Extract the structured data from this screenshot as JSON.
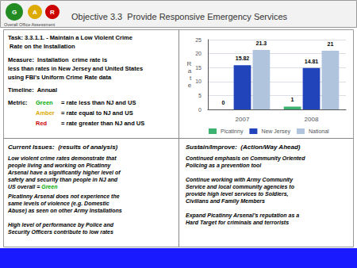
{
  "chart_data": {
    "type": "bar",
    "title": "Objective 3.3  Provide Responsive Emergency Services",
    "categories": [
      "2007",
      "2008"
    ],
    "series": [
      {
        "name": "Picatinny",
        "color": "#3cb371",
        "values": [
          0,
          1
        ]
      },
      {
        "name": "New Jersey",
        "color": "#2244bb",
        "values": [
          15.82,
          14.81
        ]
      },
      {
        "name": "National",
        "color": "#b0c4de",
        "values": [
          21.3,
          21
        ]
      }
    ],
    "ylim": [
      0,
      25
    ],
    "yticks": [
      0,
      5,
      10,
      15,
      20,
      25
    ],
    "ylabel": "R\na\nt\ne",
    "grid": true,
    "legend": "bottom",
    "data_labels": true,
    "annotations": [
      {
        "text": "G",
        "color": "#228b22",
        "marker": "circle"
      },
      {
        "text": "A",
        "color": "#ddaa00",
        "marker": "circle"
      },
      {
        "text": "R",
        "color": "#cc0000",
        "marker": "circle"
      },
      {
        "text": "Overall Office Assessment"
      },
      {
        "text": "Task: 3.3.1.1. - Maintain a Low Violent Crime\n Rate on the Installation"
      },
      {
        "text": "Measure:  Installation  crime rate is\nless than rates in New Jersey and United States\nusing FBI's Uniform Crime Rate data"
      },
      {
        "text": "Timeline:  Annual"
      },
      {
        "text": "Metric:"
      },
      {
        "text": "Green",
        "color": "#00aa00"
      },
      {
        "text": "= rate less than NJ and US"
      },
      {
        "text": "Amber",
        "color": "#ddaa00"
      },
      {
        "text": "= rate equal to NJ and US"
      },
      {
        "text": "Red",
        "color": "#cc0000"
      },
      {
        "text": "= rate greater than NJ and US"
      },
      {
        "text": "Current Issues:  (results of analysis)"
      },
      {
        "text": "Low violent crime rates demonstrate that\npeople living and working on Picatinny\nArsenal have a significantly higher level of\nsafety and security than people in NJ and\nUS overall ="
      },
      {
        "text": "Green",
        "color": "#00aa00"
      },
      {
        "text": "Picatinny Arsenal does not experience the\nsame levels of violence (e.g. Domestic\nAbuse) as seen on other Army Installations\n\nHigh level of performance by Police and\nSecurity Officers contribute to low rates"
      },
      {
        "text": "Sustain/Improve:  (Action/Way Ahead)"
      },
      {
        "text": "Continued emphasis on Community Oriented\nPolicing as a prevention tool\n\nContinue working with Army Community\nService and local community agencies to\nprovide high level services to Soldiers,\nCivilians and Family Members\n\nExpand Picatinny Arsenal’s reputation as a\nHard Target for criminals and terrorists"
      }
    ]
  }
}
